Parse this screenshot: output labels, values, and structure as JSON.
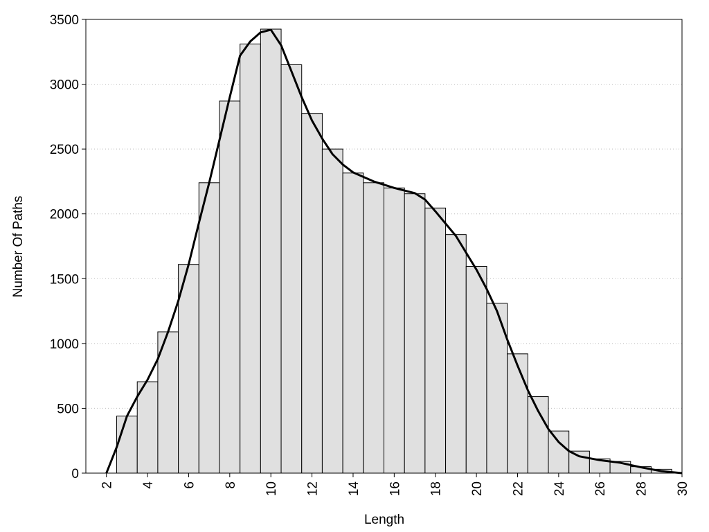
{
  "chart_data": {
    "type": "histogram",
    "x_label": "Length",
    "y_label": "Number Of Paths",
    "bins": [
      2.5,
      3.5,
      4.5,
      5.5,
      6.5,
      7.5,
      8.5,
      9.5,
      10.5,
      11.5,
      12.5,
      13.5,
      14.5,
      15.5,
      16.5,
      17.5,
      18.5,
      19.5,
      20.5,
      21.5,
      22.5,
      23.5,
      24.5,
      25.5,
      26.5,
      27.5,
      28.5,
      29.5
    ],
    "counts": [
      440,
      705,
      1090,
      1610,
      2240,
      2870,
      3310,
      3425,
      3150,
      2775,
      2500,
      2315,
      2240,
      2200,
      2155,
      2045,
      1840,
      1595,
      1310,
      920,
      590,
      325,
      170,
      110,
      90,
      50,
      30
    ],
    "color": "#e0e0e0",
    "curve": {
      "color": "#000000",
      "x": [
        2,
        2.5,
        3,
        3.5,
        4,
        4.5,
        5,
        5.5,
        6,
        6.5,
        7,
        7.5,
        8,
        8.5,
        9,
        9.5,
        10,
        10.5,
        11,
        11.5,
        12,
        12.5,
        13,
        13.5,
        14,
        15,
        16,
        17,
        17.5,
        18,
        19,
        20,
        20.5,
        21,
        21.5,
        22,
        22.5,
        23,
        23.5,
        24,
        24.5,
        25,
        26,
        27,
        28,
        29,
        30
      ],
      "values": [
        0,
        200,
        440,
        590,
        720,
        880,
        1090,
        1330,
        1610,
        1930,
        2240,
        2570,
        2900,
        3220,
        3330,
        3400,
        3420,
        3300,
        3100,
        2900,
        2720,
        2580,
        2460,
        2380,
        2320,
        2250,
        2200,
        2160,
        2110,
        2020,
        1830,
        1570,
        1420,
        1250,
        1030,
        830,
        640,
        480,
        340,
        240,
        170,
        130,
        100,
        80,
        45,
        15,
        0
      ]
    },
    "xlim": [
      1,
      30
    ],
    "xticks": [
      2,
      4,
      6,
      8,
      10,
      12,
      14,
      16,
      18,
      20,
      22,
      24,
      26,
      28,
      30
    ],
    "ylim": [
      0,
      3500
    ],
    "yticks": [
      0,
      500,
      1000,
      1500,
      2000,
      2500,
      3000,
      3500
    ],
    "grid": true
  }
}
